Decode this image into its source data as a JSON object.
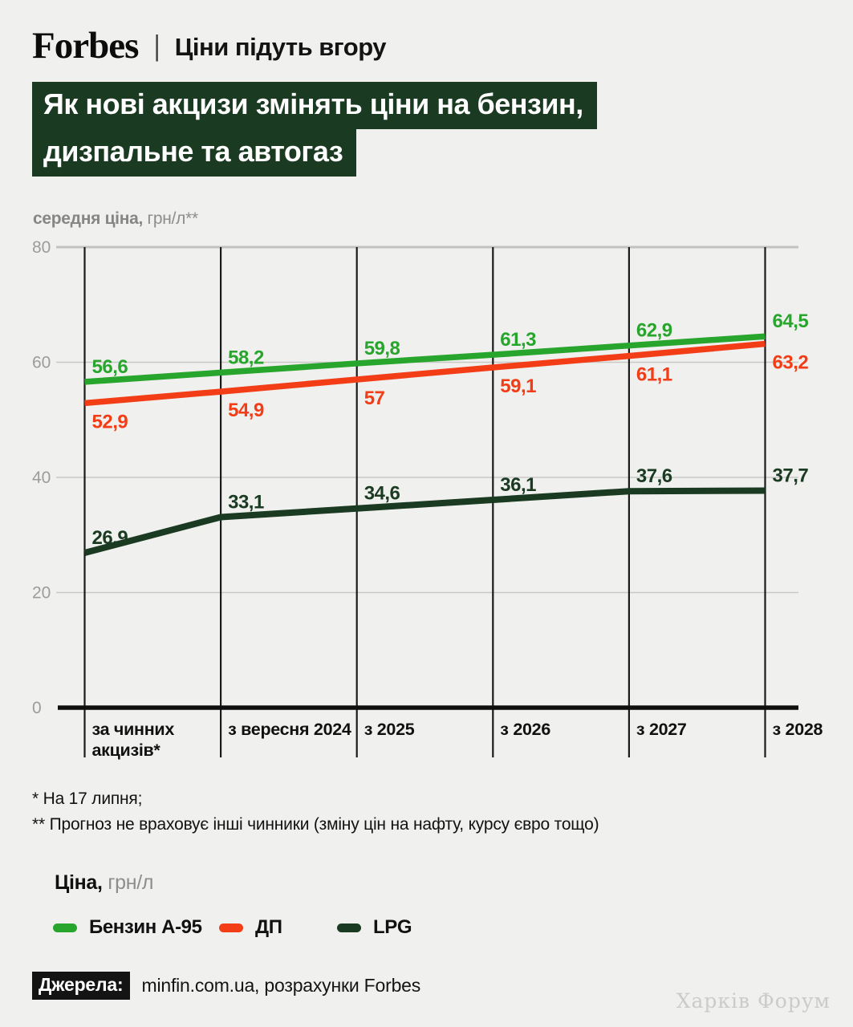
{
  "header": {
    "brand": "Forbes",
    "separator": "|",
    "tagline": "Ціни підуть вгору"
  },
  "title": {
    "lines": [
      "Як нові акцизи змінять ціни на бензин,",
      "дизпальне та автогаз"
    ]
  },
  "axis_label": {
    "bold": "середня ціна,",
    "regular": " грн/л**"
  },
  "chart_data": {
    "type": "line",
    "title": "Як нові акцизи змінять ціни на бензин, дизпальне та автогаз",
    "ylabel": "середня ціна, грн/л**",
    "categories": [
      "за чинних\nакцизів*",
      "з вересня 2024",
      "з 2025",
      "з 2026",
      "з 2027",
      "з 2028"
    ],
    "series": [
      {
        "id": "benzin-a95",
        "name": "Бензин А-95",
        "color": "#28a52c",
        "values": [
          56.6,
          58.2,
          59.8,
          61.3,
          62.9,
          64.5
        ],
        "labels": [
          "56,6",
          "58,2",
          "59,8",
          "61,3",
          "62,9",
          "64,5"
        ],
        "label_side": "above"
      },
      {
        "id": "dp",
        "name": "ДП",
        "color": "#f23d16",
        "values": [
          52.9,
          54.9,
          57,
          59.1,
          61.1,
          63.2
        ],
        "labels": [
          "52,9",
          "54,9",
          "57",
          "59,1",
          "61,1",
          "63,2"
        ],
        "label_side": "below"
      },
      {
        "id": "lpg",
        "name": "LPG",
        "color": "#1b3a22",
        "values": [
          26.9,
          33.1,
          34.6,
          36.1,
          37.6,
          37.7
        ],
        "labels": [
          "26,9",
          "33,1",
          "34,6",
          "36,1",
          "37,6",
          "37,7"
        ],
        "label_side": "above"
      }
    ],
    "ylim": [
      0,
      80
    ],
    "yticks": [
      0,
      20,
      40,
      60,
      80
    ],
    "grid": true,
    "legend_position": "bottom"
  },
  "footnotes": [
    "* На 17 липня;",
    "** Прогноз не враховує інші чинники (зміну цін на нафту, курсу євро тощо)"
  ],
  "legend_title": {
    "bold": "Ціна,",
    "regular": " грн/л"
  },
  "source": {
    "label": "Джерела:",
    "text": "minfin.com.ua, розрахунки Forbes"
  },
  "watermark": "Харків Форум",
  "colors": {
    "background": "#f0f0ee",
    "title_bg": "#1a3a22",
    "benzin_green": "#28a52c",
    "dp_red": "#f23d16",
    "lpg_dark_green": "#1b3a22",
    "axis_gray": "#9c9c9a",
    "grid_gray": "#c8c8c6"
  }
}
